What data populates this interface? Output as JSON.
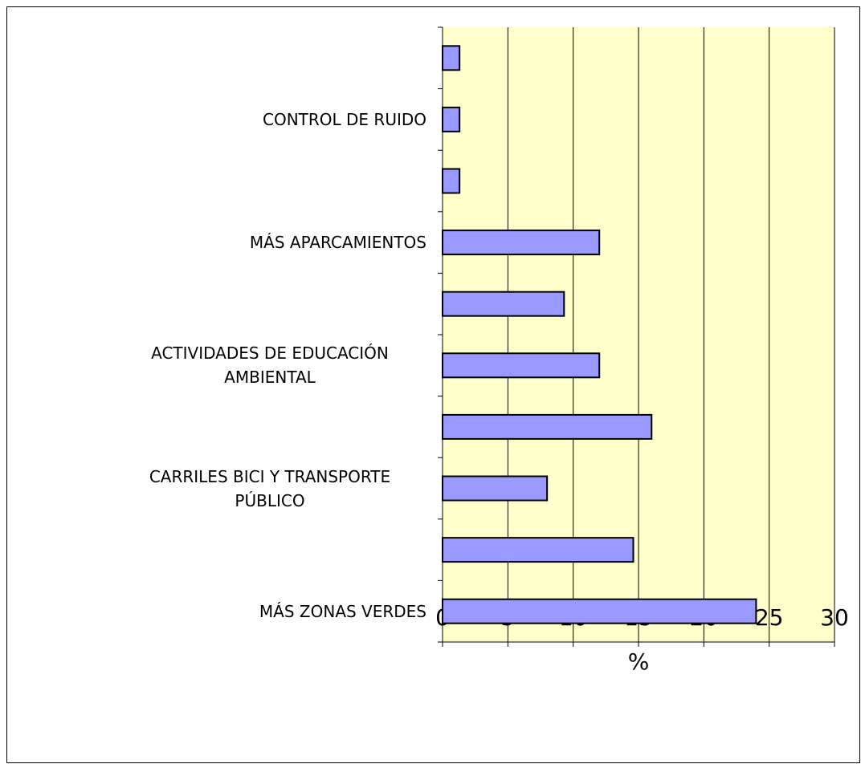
{
  "chart_data": {
    "type": "bar",
    "orientation": "horizontal",
    "categories": [
      "MÁS ZONAS VERDES",
      null,
      "CARRILES BICI Y TRANSPORTE PÚBLICO",
      null,
      "ACTIVIDADES DE EDUCACIÓN AMBIENTAL",
      null,
      "MÁS APARCAMIENTOS",
      null,
      "CONTROL DE RUIDO",
      null
    ],
    "values": [
      24,
      14.6,
      8,
      16,
      12,
      9.3,
      12,
      1.3,
      1.3,
      1.3
    ],
    "color": "#9999ff",
    "plot_background": "#ffffcc",
    "xlabel": "%",
    "xlim": [
      0,
      30
    ],
    "xticks": [
      0,
      5,
      10,
      15,
      20,
      25,
      30
    ],
    "grid": true
  }
}
